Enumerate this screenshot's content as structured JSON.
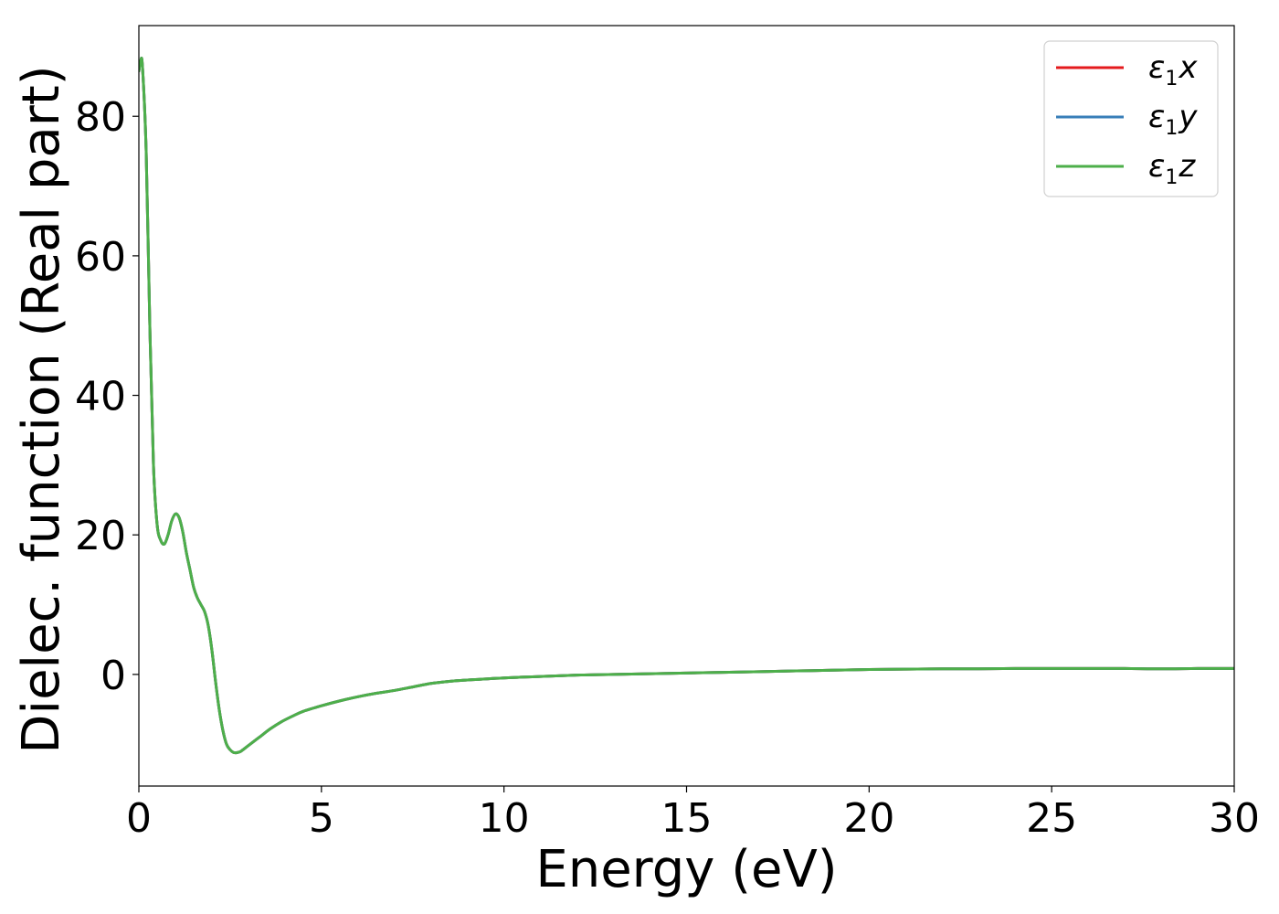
{
  "chart_data": {
    "type": "line",
    "title": "",
    "xlabel": "Energy (eV)",
    "ylabel": "Dielec. function (Real part)",
    "xlim": [
      0,
      30
    ],
    "ylim": [
      -16,
      93
    ],
    "x_ticks": [
      0,
      5,
      10,
      15,
      20,
      25,
      30
    ],
    "y_ticks": [
      0,
      20,
      40,
      60,
      80
    ],
    "grid": false,
    "legend_position": "top-right",
    "x": [
      0.0,
      0.05,
      0.1,
      0.2,
      0.3,
      0.4,
      0.5,
      0.6,
      0.7,
      0.8,
      0.9,
      1.0,
      1.1,
      1.2,
      1.3,
      1.4,
      1.5,
      1.6,
      1.7,
      1.8,
      1.9,
      2.0,
      2.1,
      2.2,
      2.3,
      2.4,
      2.5,
      2.6,
      2.7,
      2.8,
      3.0,
      3.3,
      3.6,
      3.9,
      4.2,
      4.5,
      5.0,
      5.5,
      6.0,
      6.5,
      7.0,
      7.5,
      8.0,
      8.5,
      9.0,
      10.0,
      11.0,
      12.0,
      13.0,
      14.0,
      15.0,
      16.0,
      17.0,
      18.0,
      19.0,
      20.0,
      21.0,
      22.0,
      23.0,
      24.0,
      25.0,
      26.0,
      27.0,
      28.0,
      29.0,
      30.0
    ],
    "series": [
      {
        "name": "ε1x",
        "color": "#e41a1c",
        "values": [
          86.5,
          88.0,
          87.0,
          75.0,
          50.0,
          30.0,
          21.5,
          19.2,
          18.7,
          20.0,
          22.0,
          23.0,
          22.5,
          20.5,
          17.5,
          15.0,
          12.5,
          11.0,
          10.0,
          9.0,
          7.0,
          3.5,
          -1.0,
          -5.0,
          -8.0,
          -10.0,
          -10.8,
          -11.2,
          -11.2,
          -11.0,
          -10.2,
          -9.0,
          -7.8,
          -6.8,
          -6.0,
          -5.3,
          -4.5,
          -3.8,
          -3.2,
          -2.7,
          -2.3,
          -1.8,
          -1.3,
          -1.0,
          -0.8,
          -0.5,
          -0.3,
          -0.1,
          0.0,
          0.1,
          0.2,
          0.3,
          0.4,
          0.5,
          0.6,
          0.7,
          0.75,
          0.8,
          0.8,
          0.85,
          0.85,
          0.85,
          0.85,
          0.8,
          0.85,
          0.85
        ]
      },
      {
        "name": "ε1y",
        "color": "#377eb8",
        "values": [
          86.5,
          88.0,
          87.0,
          75.0,
          50.0,
          30.0,
          21.5,
          19.2,
          18.7,
          20.0,
          22.0,
          23.0,
          22.5,
          20.5,
          17.5,
          15.0,
          12.5,
          11.0,
          10.0,
          9.0,
          7.0,
          3.5,
          -1.0,
          -5.0,
          -8.0,
          -10.0,
          -10.8,
          -11.2,
          -11.2,
          -11.0,
          -10.2,
          -9.0,
          -7.8,
          -6.8,
          -6.0,
          -5.3,
          -4.5,
          -3.8,
          -3.2,
          -2.7,
          -2.3,
          -1.8,
          -1.3,
          -1.0,
          -0.8,
          -0.5,
          -0.3,
          -0.1,
          0.0,
          0.1,
          0.2,
          0.3,
          0.4,
          0.5,
          0.6,
          0.7,
          0.75,
          0.8,
          0.8,
          0.85,
          0.85,
          0.85,
          0.85,
          0.8,
          0.85,
          0.85
        ]
      },
      {
        "name": "ε1z",
        "color": "#4daf4a",
        "values": [
          86.5,
          88.0,
          87.0,
          75.0,
          50.0,
          30.0,
          21.5,
          19.2,
          18.7,
          20.0,
          22.0,
          23.0,
          22.5,
          20.5,
          17.5,
          15.0,
          12.5,
          11.0,
          10.0,
          9.0,
          7.0,
          3.5,
          -1.0,
          -5.0,
          -8.0,
          -10.0,
          -10.8,
          -11.2,
          -11.2,
          -11.0,
          -10.2,
          -9.0,
          -7.8,
          -6.8,
          -6.0,
          -5.3,
          -4.5,
          -3.8,
          -3.2,
          -2.7,
          -2.3,
          -1.8,
          -1.3,
          -1.0,
          -0.8,
          -0.5,
          -0.3,
          -0.1,
          0.0,
          0.1,
          0.2,
          0.3,
          0.4,
          0.5,
          0.6,
          0.7,
          0.75,
          0.8,
          0.8,
          0.85,
          0.85,
          0.85,
          0.85,
          0.8,
          0.85,
          0.85
        ]
      }
    ],
    "legend": [
      {
        "symbol": "ε",
        "subscript": "1",
        "axis": "x",
        "color": "#e41a1c"
      },
      {
        "symbol": "ε",
        "subscript": "1",
        "axis": "y",
        "color": "#377eb8"
      },
      {
        "symbol": "ε",
        "subscript": "1",
        "axis": "z",
        "color": "#4daf4a"
      }
    ]
  }
}
